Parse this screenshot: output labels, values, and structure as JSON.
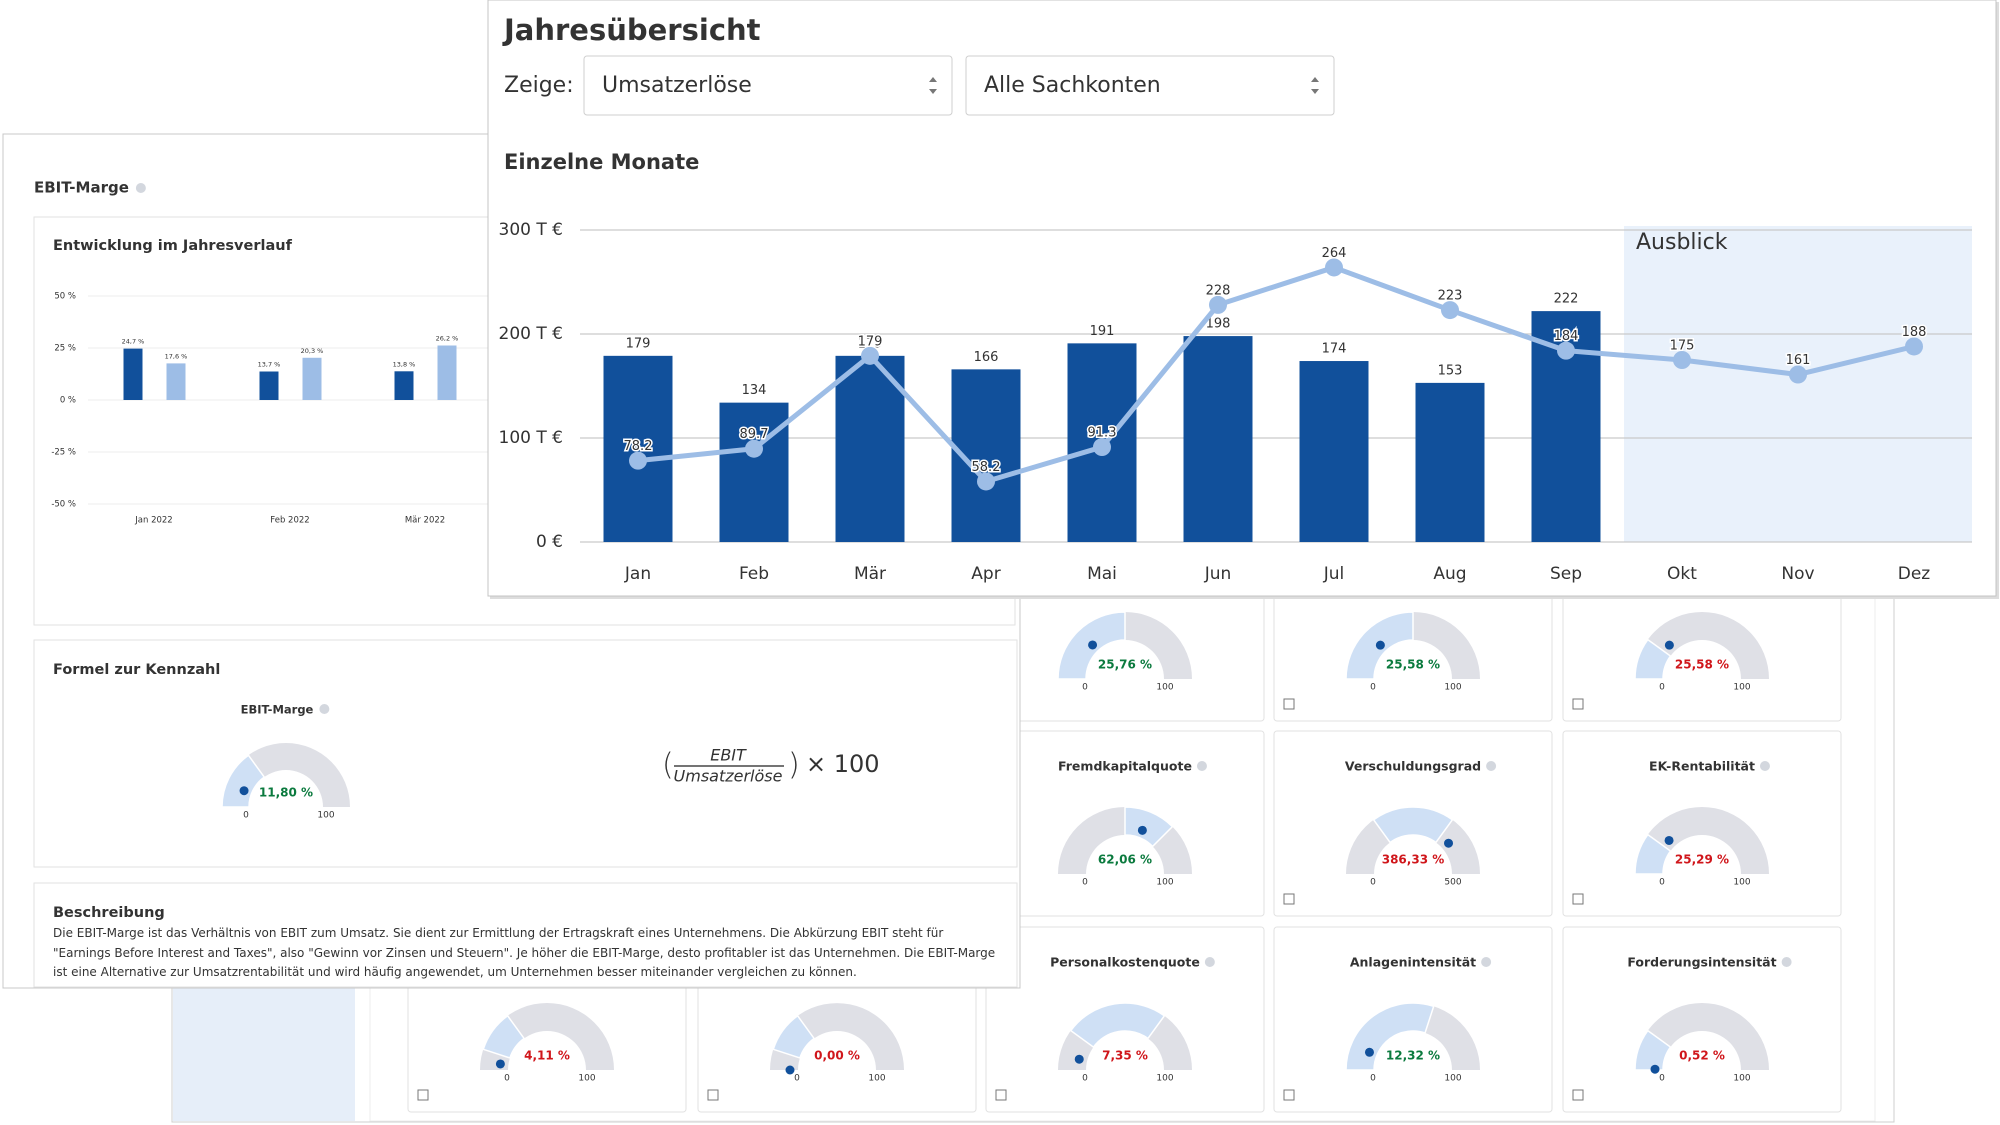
{
  "overview": {
    "title": "Jahresübersicht",
    "show_label": "Zeige:",
    "select_account": "Umsatzerlöse",
    "select_ledger": "Alle Sachkonten",
    "subtitle": "Einzelne Monate",
    "chart_data": {
      "type": "bar-line",
      "categories": [
        "Jan",
        "Feb",
        "Mär",
        "Apr",
        "Mai",
        "Jun",
        "Jul",
        "Aug",
        "Sep",
        "Okt",
        "Nov",
        "Dez"
      ],
      "ylim": [
        0,
        300
      ],
      "yticks": [
        {
          "value": 0,
          "label": "0 €"
        },
        {
          "value": 100,
          "label": "100 T €"
        },
        {
          "value": 200,
          "label": "200 T €"
        },
        {
          "value": 300,
          "label": "300 T €"
        }
      ],
      "grid": true,
      "series": [
        {
          "type": "bar",
          "color": "#11509b",
          "values": [
            179,
            134,
            179,
            166,
            191,
            198,
            174,
            153,
            222,
            null,
            null,
            null
          ]
        },
        {
          "type": "line",
          "color": "#9dbde6",
          "values": [
            78.2,
            89.7,
            179,
            58.2,
            91.3,
            228,
            264,
            223,
            184,
            175,
            161,
            188
          ]
        }
      ],
      "annotation": {
        "label": "Ausblick",
        "start": "Okt",
        "color": "#e9f1fb"
      }
    }
  },
  "ebit": {
    "title": "EBIT-Marge",
    "trend_title": "Entwicklung im Jahresverlauf",
    "chart_data": {
      "type": "bar",
      "categories": [
        "Jan 2022",
        "Feb 2022",
        "Mär 2022"
      ],
      "ylim": [
        -50,
        50
      ],
      "yticks": [
        {
          "value": 50,
          "label": "50 %"
        },
        {
          "value": 25,
          "label": "25 %"
        },
        {
          "value": 0,
          "label": "0 %"
        },
        {
          "value": -25,
          "label": "-25 %"
        },
        {
          "value": -50,
          "label": "-50 %"
        }
      ],
      "grid": true,
      "series": [
        {
          "color": "#11509b",
          "values": [
            24.7,
            13.7,
            13.8
          ],
          "value_labels": [
            "24,7 %",
            "13,7 %",
            "13,8 %"
          ]
        },
        {
          "color": "#9dbde6",
          "values": [
            17.6,
            20.3,
            26.2
          ],
          "value_labels": [
            "17,6 %",
            "20,3 %",
            "26,2 %"
          ]
        }
      ]
    },
    "formula_title": "Formel zur Kennzahl",
    "gauge": {
      "title": "EBIT-Marge",
      "value": 11.8,
      "value_label": "11,80 %",
      "min": 0,
      "max": 100,
      "band": [
        0,
        30
      ],
      "status": "good"
    },
    "formula": {
      "numerator": "EBIT",
      "denominator": "Umsatzerlöse",
      "factor": "× 100"
    },
    "description_title": "Beschreibung",
    "description": "Die EBIT-Marge ist das Verhältnis von EBIT zum Umsatz. Sie dient zur Ermittlung der Ertragskraft eines Unternehmens. Die Abkürzung EBIT steht für \"Earnings Before Interest and Taxes\", also \"Gewinn vor Zinsen und Steuern\". Je höher die EBIT-Marge, desto profitabler ist das Unternehmen. Die EBIT-Marge ist eine Alternative zur Umsatzrentabilität und wird häufig angewendet, um Unternehmen besser miteinander vergleichen zu können."
  },
  "dashboard": {
    "status_colors": {
      "good": "#0b7a3e",
      "bad": "#d0161b"
    },
    "gauges": [
      {
        "row": 0,
        "col": 2,
        "value": 25.76,
        "value_label": "25,76 %",
        "min": 0,
        "max": 100,
        "band": [
          0,
          50
        ],
        "status": "good"
      },
      {
        "row": 0,
        "col": 3,
        "value": 25.58,
        "value_label": "25,58 %",
        "min": 0,
        "max": 100,
        "band": [
          0,
          50
        ],
        "status": "good"
      },
      {
        "row": 0,
        "col": 4,
        "value": 25.58,
        "value_label": "25,58 %",
        "min": 0,
        "max": 100,
        "band": [
          0,
          20
        ],
        "status": "bad"
      },
      {
        "row": 1,
        "col": 2,
        "title": "Fremdkapitalquote",
        "value": 62.06,
        "value_label": "62,06 %",
        "min": 0,
        "max": 100,
        "band": [
          50,
          75
        ],
        "status": "good"
      },
      {
        "row": 1,
        "col": 3,
        "title": "Verschuldungsgrad",
        "value": 386.33,
        "value_label": "386,33 %",
        "min": 0,
        "max": 500,
        "band": [
          150,
          350
        ],
        "status": "bad"
      },
      {
        "row": 1,
        "col": 4,
        "title": "EK-Rentabilität",
        "value": 25.29,
        "value_label": "25,29 %",
        "min": 0,
        "max": 100,
        "band": [
          0,
          20
        ],
        "status": "bad"
      },
      {
        "row": 2,
        "col": 0,
        "value": 4.11,
        "value_label": "4,11 %",
        "min": 0,
        "max": 100,
        "band": [
          10,
          30
        ],
        "status": "bad"
      },
      {
        "row": 2,
        "col": 1,
        "value": 0,
        "value_label": "0,00 %",
        "min": 0,
        "max": 100,
        "band": [
          10,
          30
        ],
        "status": "bad"
      },
      {
        "row": 2,
        "col": 2,
        "title": "Personalkostenquote",
        "value": 7.35,
        "value_label": "7,35 %",
        "min": 0,
        "max": 100,
        "band": [
          20,
          70
        ],
        "status": "bad"
      },
      {
        "row": 2,
        "col": 3,
        "title": "Anlagenintensität",
        "value": 12.32,
        "value_label": "12,32 %",
        "min": 0,
        "max": 100,
        "band": [
          0,
          60
        ],
        "status": "good"
      },
      {
        "row": 2,
        "col": 4,
        "title": "Forderungsintensität",
        "value": 0.52,
        "value_label": "0,52 %",
        "min": 0,
        "max": 100,
        "band": [
          0,
          20
        ],
        "status": "bad"
      }
    ]
  }
}
